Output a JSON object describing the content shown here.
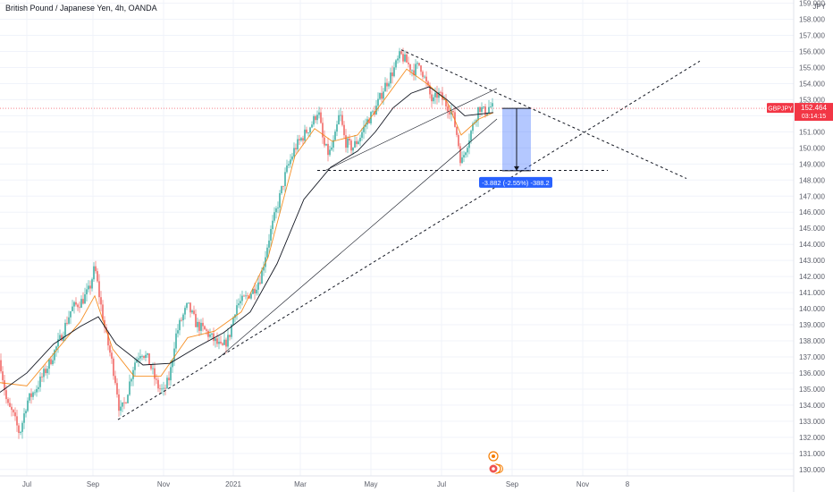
{
  "header": {
    "title": "British Pound / Japanese Yen, 4h, OANDA"
  },
  "price_axis": {
    "unit_label": "JPY",
    "ticks": [
      "159.000",
      "158.000",
      "157.000",
      "156.000",
      "155.000",
      "154.000",
      "153.000",
      "152.000",
      "151.000",
      "150.000",
      "149.000",
      "148.000",
      "147.000",
      "146.000",
      "145.000",
      "144.000",
      "143.000",
      "142.000",
      "141.000",
      "140.000",
      "139.000",
      "138.000",
      "137.000",
      "136.000",
      "135.000",
      "134.000",
      "133.000",
      "132.000",
      "131.000",
      "130.000"
    ]
  },
  "time_axis": {
    "ticks": [
      "Jul",
      "Sep",
      "Nov",
      "2021",
      "Mar",
      "May",
      "Jul",
      "Sep",
      "Nov",
      "8"
    ]
  },
  "current_price": {
    "symbol": "GBPJPY",
    "price": "152.464",
    "countdown": "03:14:15",
    "color": "#f23645"
  },
  "measure_tool": {
    "label": "-3.882 (-2.55%) -388.2",
    "from_price": 152.464,
    "to_price": 148.582,
    "color": "#2962ff"
  },
  "chart_data": {
    "type": "line",
    "series_style": "candlestick",
    "timeframe": "4h",
    "ylim": [
      129.6,
      159.2
    ],
    "xlabel": "",
    "ylabel": "",
    "candle_up_color": "#26a69a",
    "candle_down_color": "#ef5350",
    "ma_fast_color": "#f57c00",
    "ma_slow_color": "#131722",
    "x_ticks": [
      "Jul",
      "Sep",
      "Nov",
      "2021",
      "Mar",
      "May",
      "Jul",
      "Sep",
      "Nov",
      "8"
    ],
    "price_path": [
      [
        0,
        136.8
      ],
      [
        8,
        134.0
      ],
      [
        14,
        133.5
      ],
      [
        22,
        132.2
      ],
      [
        30,
        134.2
      ],
      [
        42,
        135.2
      ],
      [
        55,
        136.6
      ],
      [
        68,
        138.2
      ],
      [
        80,
        140.0
      ],
      [
        92,
        140.5
      ],
      [
        100,
        141.2
      ],
      [
        106,
        142.6
      ],
      [
        112,
        140.5
      ],
      [
        118,
        138.5
      ],
      [
        124,
        137.0
      ],
      [
        130,
        135.3
      ],
      [
        134,
        133.5
      ],
      [
        140,
        134.2
      ],
      [
        150,
        136.6
      ],
      [
        158,
        137.4
      ],
      [
        166,
        136.8
      ],
      [
        176,
        135.2
      ],
      [
        183,
        134.8
      ],
      [
        190,
        135.8
      ],
      [
        196,
        138.2
      ],
      [
        202,
        139.2
      ],
      [
        210,
        140.2
      ],
      [
        220,
        139.0
      ],
      [
        230,
        138.6
      ],
      [
        240,
        138.0
      ],
      [
        248,
        137.5
      ],
      [
        256,
        138.2
      ],
      [
        264,
        140.2
      ],
      [
        274,
        140.6
      ],
      [
        284,
        141.2
      ],
      [
        292,
        142.0
      ],
      [
        300,
        144.2
      ],
      [
        310,
        146.3
      ],
      [
        320,
        148.5
      ],
      [
        330,
        150.0
      ],
      [
        340,
        150.8
      ],
      [
        350,
        151.6
      ],
      [
        356,
        152.4
      ],
      [
        362,
        150.2
      ],
      [
        368,
        149.6
      ],
      [
        374,
        150.4
      ],
      [
        380,
        152.2
      ],
      [
        386,
        150.4
      ],
      [
        394,
        150.0
      ],
      [
        402,
        150.6
      ],
      [
        410,
        151.6
      ],
      [
        420,
        152.4
      ],
      [
        430,
        153.8
      ],
      [
        440,
        154.8
      ],
      [
        448,
        155.8
      ],
      [
        454,
        155.4
      ],
      [
        462,
        154.8
      ],
      [
        470,
        155.2
      ],
      [
        478,
        153.8
      ],
      [
        484,
        152.8
      ],
      [
        490,
        153.4
      ],
      [
        498,
        152.8
      ],
      [
        506,
        152.2
      ],
      [
        512,
        150.6
      ],
      [
        516,
        149.0
      ],
      [
        520,
        149.8
      ],
      [
        528,
        151.2
      ],
      [
        536,
        152.6
      ],
      [
        542,
        152.2
      ],
      [
        548,
        152.6
      ],
      [
        552,
        152.46
      ]
    ],
    "ma_slow_path": [
      [
        0,
        134.8
      ],
      [
        30,
        136.0
      ],
      [
        60,
        137.8
      ],
      [
        90,
        138.9
      ],
      [
        110,
        139.5
      ],
      [
        130,
        137.8
      ],
      [
        160,
        136.5
      ],
      [
        190,
        136.6
      ],
      [
        220,
        137.6
      ],
      [
        250,
        138.5
      ],
      [
        280,
        139.8
      ],
      [
        310,
        142.8
      ],
      [
        340,
        146.8
      ],
      [
        370,
        148.8
      ],
      [
        400,
        149.8
      ],
      [
        420,
        151.0
      ],
      [
        440,
        152.5
      ],
      [
        460,
        153.4
      ],
      [
        480,
        153.8
      ],
      [
        500,
        153.0
      ],
      [
        520,
        152.0
      ],
      [
        552,
        152.2
      ]
    ],
    "ma_fast_path": [
      [
        0,
        135.4
      ],
      [
        30,
        135.2
      ],
      [
        60,
        137.2
      ],
      [
        90,
        139.2
      ],
      [
        106,
        140.8
      ],
      [
        126,
        137.5
      ],
      [
        150,
        135.8
      ],
      [
        180,
        135.8
      ],
      [
        210,
        138.2
      ],
      [
        240,
        138.6
      ],
      [
        270,
        139.8
      ],
      [
        300,
        143.2
      ],
      [
        330,
        149.5
      ],
      [
        352,
        151.2
      ],
      [
        372,
        150.4
      ],
      [
        400,
        150.8
      ],
      [
        430,
        153.0
      ],
      [
        455,
        154.9
      ],
      [
        480,
        153.9
      ],
      [
        500,
        152.9
      ],
      [
        516,
        150.8
      ],
      [
        536,
        151.8
      ],
      [
        552,
        152.2
      ]
    ],
    "support_line_dashed": {
      "from": [
        132,
        133.1
      ],
      "to": [
        783,
        155.4
      ]
    },
    "down_trendline_dashed": {
      "from": [
        449,
        156.1
      ],
      "to": [
        768,
        148.1
      ]
    },
    "trendline_solid_1": {
      "from": [
        246,
        137.0
      ],
      "to": [
        556,
        151.8
      ]
    },
    "trendline_solid_2": {
      "from": [
        364,
        148.6
      ],
      "to": [
        556,
        153.7
      ]
    },
    "horizontal_level_dashed": {
      "from": [
        355,
        148.6
      ],
      "to": [
        680,
        148.6
      ]
    }
  }
}
